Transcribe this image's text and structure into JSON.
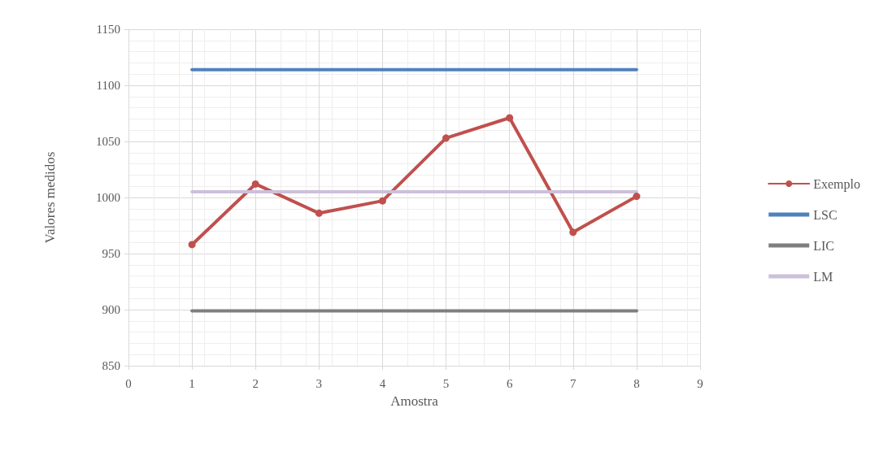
{
  "chart_data": {
    "type": "line",
    "xlabel": "Amostra",
    "ylabel": "Valores medidos",
    "x": [
      1,
      2,
      3,
      4,
      5,
      6,
      7,
      8
    ],
    "xlim": [
      0,
      9
    ],
    "xticks": [
      0,
      1,
      2,
      3,
      4,
      5,
      6,
      7,
      8,
      9
    ],
    "ylim": [
      850,
      1150
    ],
    "yticks": [
      850,
      900,
      950,
      1000,
      1050,
      1100,
      1150
    ],
    "grid": true,
    "legend": "right",
    "line_style": "solid",
    "series": [
      {
        "name": "Exemplo",
        "color": "#c0504d",
        "marker": "circle",
        "values": [
          958,
          1012,
          986,
          997,
          1053,
          1071,
          969,
          1001
        ]
      },
      {
        "name": "LSC",
        "color": "#4f81bd",
        "marker": "none",
        "values": [
          1114,
          1114,
          1114,
          1114,
          1114,
          1114,
          1114,
          1114
        ]
      },
      {
        "name": "LIC",
        "color": "#7f7f7f",
        "marker": "none",
        "values": [
          899,
          899,
          899,
          899,
          899,
          899,
          899,
          899
        ]
      },
      {
        "name": "LM",
        "color": "#ccc0da",
        "marker": "none",
        "values": [
          1005,
          1005,
          1005,
          1005,
          1005,
          1005,
          1005,
          1005
        ]
      }
    ]
  }
}
